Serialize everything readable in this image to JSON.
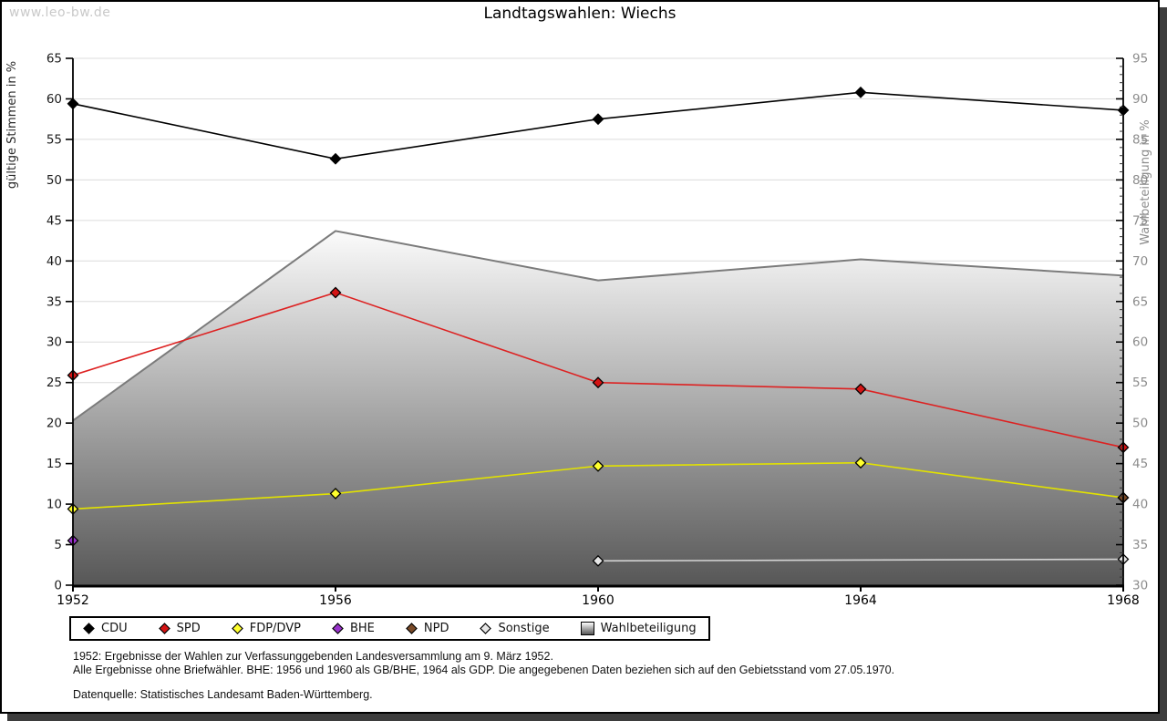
{
  "page": {
    "watermark": "www.leo-bw.de"
  },
  "chart_data": {
    "type": "line",
    "title": "Landtagswahlen: Wiechs",
    "ylabel": "gültige Stimmen in %",
    "y2label": "Wahlbeteiligung in %",
    "x": [
      "1952",
      "1956",
      "1960",
      "1964",
      "1968"
    ],
    "ylim": [
      0,
      65
    ],
    "ytick_step": 5,
    "y2lim": [
      30,
      95
    ],
    "y2tick_step": 5,
    "y2_minor_step": 1,
    "grid": "horizontal",
    "legend_position": "bottom",
    "colors": {
      "grid": "#dcdcdc",
      "axis": "#000000",
      "left_tick_label": "#1c1c1c",
      "right_tick_label": "#8c8c8c",
      "watermark": "#c9c9c9"
    },
    "series": [
      {
        "name": "CDU",
        "axis": "left",
        "line_color": "#000000",
        "marker_fill": "#000000",
        "values": [
          59.4,
          52.6,
          57.5,
          60.8,
          58.6
        ]
      },
      {
        "name": "SPD",
        "axis": "left",
        "line_color": "#dd2222",
        "marker_fill": "#d41414",
        "values": [
          25.9,
          36.1,
          25.0,
          24.2,
          17.0
        ]
      },
      {
        "name": "FDP/DVP",
        "axis": "left",
        "line_color": "#e2e200",
        "marker_fill": "#ffff2e",
        "values": [
          9.4,
          11.3,
          14.7,
          15.1,
          10.8
        ]
      },
      {
        "name": "BHE",
        "axis": "left",
        "line_color": "#9933cc",
        "marker_fill": "#9933cc",
        "values": [
          5.5,
          null,
          null,
          null,
          null
        ]
      },
      {
        "name": "NPD",
        "axis": "left",
        "line_color": "#7a4a28",
        "marker_fill": "#7a4a28",
        "values": [
          null,
          null,
          null,
          null,
          10.8
        ]
      },
      {
        "name": "Sonstige",
        "axis": "left",
        "line_color": "#d4d4d4",
        "marker_fill": "#e6e6e6",
        "values": [
          null,
          null,
          3.0,
          null,
          3.2
        ]
      },
      {
        "name": "Wahlbeteiligung",
        "axis": "right",
        "kind": "area",
        "line_color": "#7b7b7b",
        "fill_top": "#fbfbfb",
        "fill_bottom": "#575757",
        "values": [
          50.3,
          73.7,
          67.6,
          70.2,
          68.2
        ]
      }
    ],
    "footnotes": [
      "1952: Ergebnisse der Wahlen zur Verfassunggebenden Landesversammlung am 9. März 1952.",
      "Alle Ergebnisse ohne Briefwähler. BHE: 1956 und 1960 als GB/BHE, 1964 als GDP. Die angegebenen Daten beziehen sich auf den Gebietsstand vom 27.05.1970."
    ],
    "source": "Datenquelle: Statistisches Landesamt Baden-Württemberg."
  }
}
